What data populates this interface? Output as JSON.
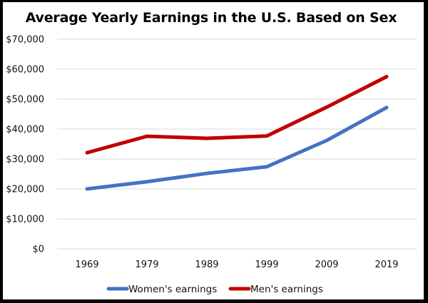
{
  "chart_data": {
    "type": "line",
    "title": "Average Yearly Earnings in the U.S. Based on Sex",
    "xlabel": "",
    "ylabel": "",
    "categories": [
      "1969",
      "1979",
      "1989",
      "1999",
      "2009",
      "2019"
    ],
    "ylim": [
      0,
      70000
    ],
    "yticks": [
      0,
      10000,
      20000,
      30000,
      40000,
      50000,
      60000,
      70000
    ],
    "ytick_labels": [
      "$0",
      "$10,000",
      "$20,000",
      "$30,000",
      "$40,000",
      "$50,000",
      "$60,000",
      "$70,000"
    ],
    "grid": true,
    "legend_position": "bottom",
    "series": [
      {
        "name": "Women's earnings",
        "color": "#4472C4",
        "values": [
          20000,
          22400,
          25200,
          27400,
          36200,
          47200
        ]
      },
      {
        "name": "Men's earnings",
        "color": "#C00000",
        "values": [
          32100,
          37600,
          36900,
          37700,
          47300,
          57500
        ]
      }
    ]
  }
}
